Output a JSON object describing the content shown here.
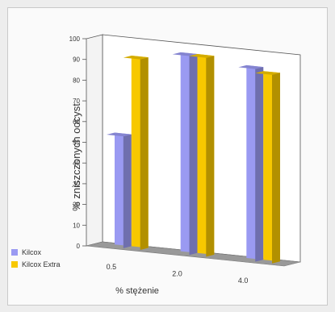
{
  "chart_data": {
    "type": "bar",
    "style": "3d-clustered-column",
    "categories": [
      "0.5",
      "2.0",
      "4.0"
    ],
    "series": [
      {
        "name": "Kilcox",
        "values": [
          54,
          96,
          93
        ],
        "color": "#9a9af2"
      },
      {
        "name": "Kilcox Extra",
        "values": [
          92,
          96,
          91
        ],
        "color": "#f7c800"
      }
    ],
    "ylabel": "% zniszczonych oocyst",
    "xlabel": "% stężenie",
    "ylim": [
      0,
      100
    ],
    "yticks": [
      0,
      10,
      20,
      30,
      40,
      50,
      60,
      70,
      80,
      90,
      100
    ],
    "legend_position": "bottom-left",
    "grid": false,
    "floor_color": "#999999"
  }
}
